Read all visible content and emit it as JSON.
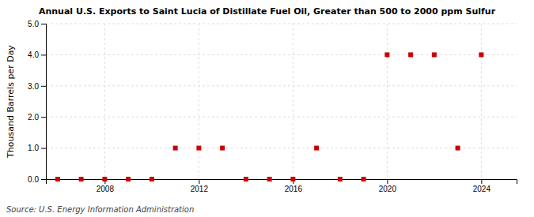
{
  "chart_data": {
    "type": "scatter",
    "title": "Annual U.S. Exports to Saint Lucia of Distillate Fuel Oil, Greater than 500 to 2000 ppm Sulfur",
    "ylabel": "Thousand Barrels per Day",
    "annotations": [
      "Source: U.S. Energy Information Administration"
    ],
    "x": [
      2006,
      2007,
      2008,
      2009,
      2010,
      2011,
      2012,
      2013,
      2014,
      2015,
      2016,
      2017,
      2018,
      2019,
      2020,
      2021,
      2022,
      2023,
      2024
    ],
    "values": [
      0.0,
      0.0,
      0.0,
      0.0,
      0.0,
      1.0,
      1.0,
      1.0,
      0.0,
      0.0,
      0.0,
      1.0,
      0.0,
      0.0,
      4.0,
      4.0,
      4.0,
      1.0,
      4.0
    ],
    "color": "#cc0000",
    "marker": "square",
    "xlim": [
      2005.5,
      2025.5
    ],
    "xticks": [
      2008,
      2012,
      2016,
      2020,
      2024
    ],
    "ylim": [
      0.0,
      5.0
    ],
    "yticks": [
      {
        "value": 0.0,
        "label": "0.0"
      },
      {
        "value": 1.0,
        "label": "1.0"
      },
      {
        "value": 2.0,
        "label": "2.0"
      },
      {
        "value": 3.0,
        "label": "3.0"
      },
      {
        "value": 4.0,
        "label": "4.0"
      },
      {
        "value": 5.0,
        "label": "5.0"
      }
    ],
    "grid": true
  }
}
